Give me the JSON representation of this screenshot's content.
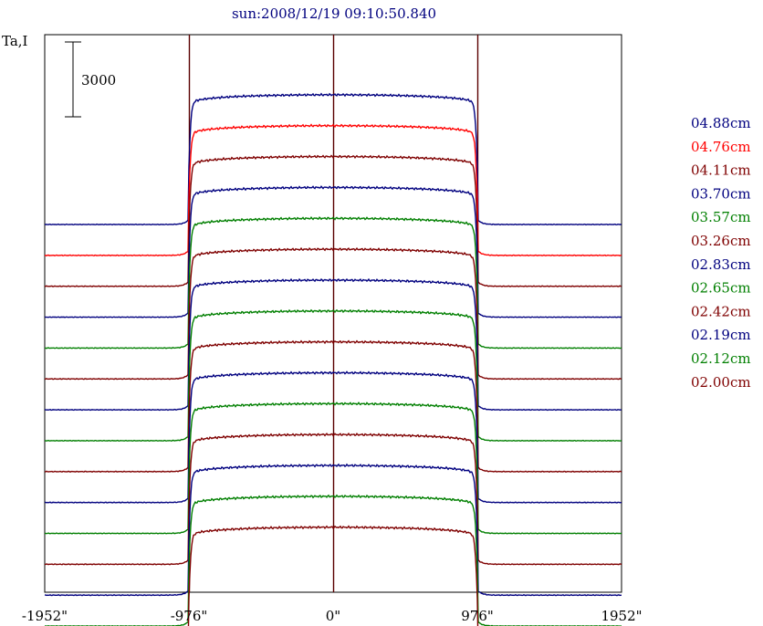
{
  "chart_data": {
    "type": "line",
    "title": "sun:2008/12/19 09:10:50.840",
    "ylabel": "Ta,I",
    "scale_bar_label": "3000",
    "x_ticks": [
      "-1952\"",
      "-976\"",
      "0\"",
      "976\"",
      "1952\""
    ],
    "x_tick_values": [
      -1952,
      -976,
      0,
      976,
      1952
    ],
    "xlim": [
      -1952,
      1952
    ],
    "vertical_markers": [
      -976,
      0,
      976
    ],
    "legend_position": "right",
    "grid": false,
    "offset_step": 1000,
    "quiet_sun_level": 5200,
    "series": [
      {
        "name": "04.88cm",
        "color": "#00007f"
      },
      {
        "name": "04.76cm",
        "color": "#ff0000"
      },
      {
        "name": "04.11cm",
        "color": "#7f0000"
      },
      {
        "name": "03.70cm",
        "color": "#00007f"
      },
      {
        "name": "03.57cm",
        "color": "#007f00"
      },
      {
        "name": "03.26cm",
        "color": "#7f0000"
      },
      {
        "name": "02.83cm",
        "color": "#00007f"
      },
      {
        "name": "02.65cm",
        "color": "#007f00"
      },
      {
        "name": "02.42cm",
        "color": "#7f0000"
      },
      {
        "name": "02.19cm",
        "color": "#00007f"
      },
      {
        "name": "02.12cm",
        "color": "#007f00"
      },
      {
        "name": "02.00cm",
        "color": "#7f0000"
      },
      {
        "color": "#00007f"
      },
      {
        "color": "#007f00"
      },
      {
        "color": "#7f0000"
      }
    ]
  }
}
